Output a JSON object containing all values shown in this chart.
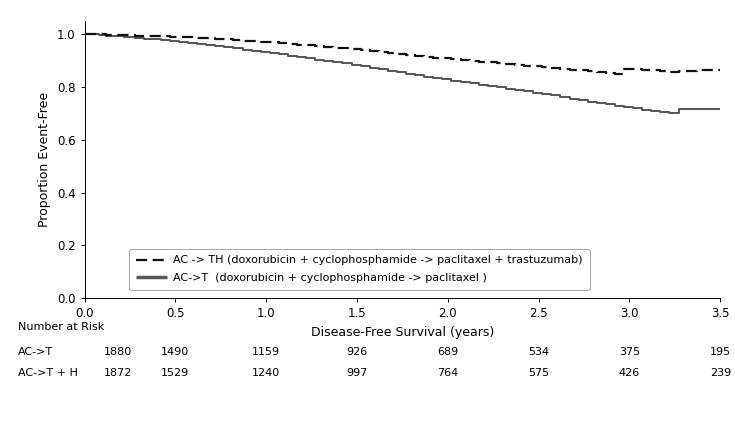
{
  "title": "",
  "xlabel": "Disease-Free Survival (years)",
  "ylabel": "Proportion Event-Free",
  "xlim": [
    0,
    3.5
  ],
  "ylim": [
    0.0,
    1.05
  ],
  "yticks": [
    0.0,
    0.2,
    0.4,
    0.6,
    0.8,
    1.0
  ],
  "xticks": [
    0.0,
    0.5,
    1.0,
    1.5,
    2.0,
    2.5,
    3.0,
    3.5
  ],
  "ACT_x": [
    0.0,
    0.08,
    0.12,
    0.18,
    0.22,
    0.28,
    0.33,
    0.38,
    0.42,
    0.47,
    0.52,
    0.57,
    0.62,
    0.67,
    0.72,
    0.77,
    0.82,
    0.87,
    0.92,
    0.97,
    1.02,
    1.07,
    1.12,
    1.17,
    1.22,
    1.27,
    1.32,
    1.37,
    1.42,
    1.47,
    1.52,
    1.57,
    1.62,
    1.67,
    1.72,
    1.77,
    1.82,
    1.87,
    1.92,
    1.97,
    2.02,
    2.07,
    2.12,
    2.17,
    2.22,
    2.27,
    2.32,
    2.37,
    2.42,
    2.47,
    2.52,
    2.57,
    2.62,
    2.67,
    2.72,
    2.77,
    2.82,
    2.87,
    2.92,
    2.97,
    3.02,
    3.07,
    3.12,
    3.17,
    3.22,
    3.27,
    3.32,
    3.37,
    3.42,
    3.47,
    3.5
  ],
  "ACT_y": [
    1.0,
    0.998,
    0.996,
    0.993,
    0.99,
    0.987,
    0.984,
    0.981,
    0.978,
    0.975,
    0.971,
    0.967,
    0.963,
    0.959,
    0.955,
    0.951,
    0.947,
    0.943,
    0.939,
    0.935,
    0.93,
    0.925,
    0.92,
    0.915,
    0.91,
    0.905,
    0.9,
    0.895,
    0.89,
    0.885,
    0.88,
    0.874,
    0.868,
    0.862,
    0.856,
    0.85,
    0.845,
    0.84,
    0.835,
    0.83,
    0.825,
    0.82,
    0.815,
    0.81,
    0.805,
    0.8,
    0.795,
    0.79,
    0.785,
    0.78,
    0.775,
    0.769,
    0.763,
    0.757,
    0.751,
    0.745,
    0.74,
    0.735,
    0.73,
    0.725,
    0.72,
    0.715,
    0.71,
    0.706,
    0.702,
    0.718,
    0.718,
    0.718,
    0.718,
    0.718,
    0.718
  ],
  "ACTH_x": [
    0.0,
    0.08,
    0.12,
    0.18,
    0.22,
    0.28,
    0.33,
    0.38,
    0.42,
    0.47,
    0.52,
    0.57,
    0.62,
    0.67,
    0.72,
    0.77,
    0.82,
    0.87,
    0.92,
    0.97,
    1.02,
    1.07,
    1.12,
    1.17,
    1.22,
    1.27,
    1.32,
    1.37,
    1.42,
    1.47,
    1.52,
    1.57,
    1.62,
    1.67,
    1.72,
    1.77,
    1.82,
    1.87,
    1.92,
    1.97,
    2.02,
    2.07,
    2.12,
    2.17,
    2.22,
    2.27,
    2.32,
    2.37,
    2.42,
    2.47,
    2.52,
    2.57,
    2.62,
    2.67,
    2.72,
    2.77,
    2.82,
    2.87,
    2.92,
    2.97,
    3.02,
    3.07,
    3.12,
    3.17,
    3.22,
    3.27,
    3.32,
    3.37,
    3.42,
    3.47,
    3.5
  ],
  "ACTH_y": [
    1.0,
    1.0,
    0.999,
    0.998,
    0.997,
    0.996,
    0.995,
    0.994,
    0.993,
    0.992,
    0.991,
    0.989,
    0.987,
    0.985,
    0.983,
    0.981,
    0.979,
    0.977,
    0.975,
    0.973,
    0.971,
    0.968,
    0.965,
    0.962,
    0.959,
    0.956,
    0.953,
    0.95,
    0.947,
    0.944,
    0.941,
    0.937,
    0.933,
    0.929,
    0.925,
    0.921,
    0.918,
    0.915,
    0.912,
    0.909,
    0.906,
    0.903,
    0.9,
    0.897,
    0.894,
    0.891,
    0.888,
    0.885,
    0.882,
    0.879,
    0.876,
    0.873,
    0.87,
    0.867,
    0.864,
    0.861,
    0.858,
    0.855,
    0.852,
    0.87,
    0.87,
    0.867,
    0.864,
    0.861,
    0.858,
    0.86,
    0.862,
    0.864,
    0.864,
    0.864,
    0.864
  ],
  "legend_label_ACTH": "AC -> TH (doxorubicin + cyclophosphamide -> paclitaxel + trastuzumab)",
  "legend_label_ACT": "AC->T  (doxorubicin + cyclophosphamide -> paclitaxel )",
  "risk_title": "Number at Risk",
  "risk_label_ACT": "AC->T",
  "risk_label_ACTH": "AC->T + H",
  "risk_times": [
    0.0,
    0.5,
    1.0,
    1.5,
    2.0,
    2.5,
    3.0,
    3.5
  ],
  "risk_ACT": [
    1880,
    1490,
    1159,
    926,
    689,
    534,
    375,
    195
  ],
  "risk_ACTH": [
    1872,
    1529,
    1240,
    997,
    764,
    575,
    426,
    239
  ],
  "line_color_ACT": "#555555",
  "line_color_ACTH": "#111111",
  "background_color": "#ffffff",
  "font_size_axis_label": 9,
  "font_size_tick": 8.5,
  "font_size_legend": 8,
  "font_size_risk": 8
}
